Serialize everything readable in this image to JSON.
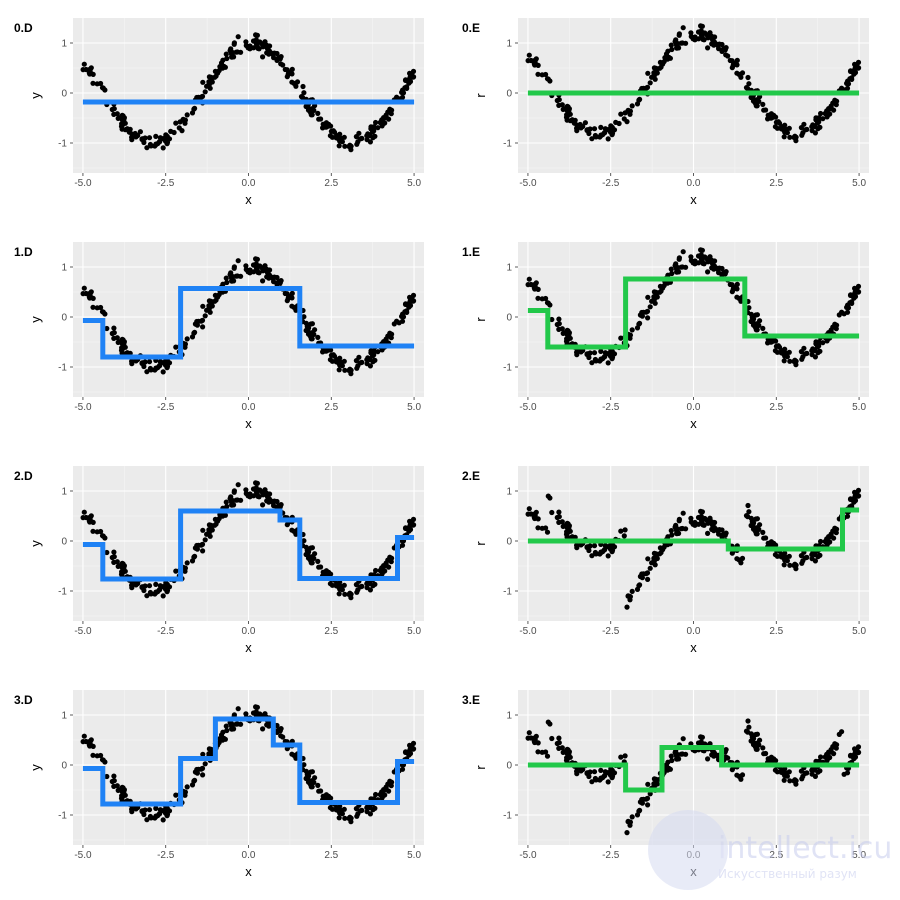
{
  "chart_data": [
    {
      "id": "0.D",
      "type": "scatter",
      "title": "0.D",
      "xlabel": "x",
      "ylabel": "y",
      "color": "#1f82f5",
      "fit": [
        [
          -5,
          -0.18
        ],
        [
          5,
          -0.18
        ]
      ],
      "ylim": [
        -1.6,
        1.5
      ],
      "xlim": [
        -5.3,
        5.3
      ],
      "xticks": [
        "-5.0",
        "-2.5",
        "0.0",
        "2.5",
        "5.0"
      ],
      "yticks": [
        "-1",
        "0",
        "1"
      ]
    },
    {
      "id": "0.E",
      "type": "scatter",
      "title": "0.E",
      "xlabel": "x",
      "ylabel": "r",
      "color": "#22c84a",
      "fit": [
        [
          -5,
          0.0
        ],
        [
          5,
          0.0
        ]
      ],
      "ylim": [
        -1.6,
        1.5
      ],
      "xlim": [
        -5.3,
        5.3
      ],
      "xticks": [
        "-5.0",
        "-2.5",
        "0.0",
        "2.5",
        "5.0"
      ],
      "yticks": [
        "-1",
        "0",
        "1"
      ]
    },
    {
      "id": "1.D",
      "type": "scatter",
      "title": "1.D",
      "xlabel": "x",
      "ylabel": "y",
      "color": "#1f82f5",
      "fit": [
        [
          -5,
          -0.07
        ],
        [
          -4.4,
          -0.07
        ],
        [
          -4.4,
          -0.8
        ],
        [
          -2.05,
          -0.8
        ],
        [
          -2.05,
          0.57
        ],
        [
          1.55,
          0.57
        ],
        [
          1.55,
          -0.58
        ],
        [
          5,
          -0.58
        ]
      ],
      "ylim": [
        -1.6,
        1.5
      ],
      "xlim": [
        -5.3,
        5.3
      ],
      "xticks": [
        "-5.0",
        "-2.5",
        "0.0",
        "2.5",
        "5.0"
      ],
      "yticks": [
        "-1",
        "0",
        "1"
      ]
    },
    {
      "id": "1.E",
      "type": "scatter",
      "title": "1.E",
      "xlabel": "x",
      "ylabel": "r",
      "color": "#22c84a",
      "fit": [
        [
          -5,
          0.13
        ],
        [
          -4.4,
          0.13
        ],
        [
          -4.4,
          -0.6
        ],
        [
          -2.05,
          -0.6
        ],
        [
          -2.05,
          0.76
        ],
        [
          1.55,
          0.76
        ],
        [
          1.55,
          -0.38
        ],
        [
          5,
          -0.38
        ]
      ],
      "ylim": [
        -1.6,
        1.5
      ],
      "xlim": [
        -5.3,
        5.3
      ],
      "xticks": [
        "-5.0",
        "-2.5",
        "0.0",
        "2.5",
        "5.0"
      ],
      "yticks": [
        "-1",
        "0",
        "1"
      ]
    },
    {
      "id": "2.D",
      "type": "scatter",
      "title": "2.D",
      "xlabel": "x",
      "ylabel": "y",
      "color": "#1f82f5",
      "fit": [
        [
          -5,
          -0.07
        ],
        [
          -4.4,
          -0.07
        ],
        [
          -4.4,
          -0.76
        ],
        [
          -2.05,
          -0.76
        ],
        [
          -2.05,
          0.6
        ],
        [
          0.95,
          0.6
        ],
        [
          0.95,
          0.42
        ],
        [
          1.55,
          0.42
        ],
        [
          1.55,
          -0.75
        ],
        [
          4.5,
          -0.75
        ],
        [
          4.5,
          0.07
        ],
        [
          5,
          0.07
        ]
      ],
      "ylim": [
        -1.6,
        1.5
      ],
      "xlim": [
        -5.3,
        5.3
      ],
      "xticks": [
        "-5.0",
        "-2.5",
        "0.0",
        "2.5",
        "5.0"
      ],
      "yticks": [
        "-1",
        "0",
        "1"
      ]
    },
    {
      "id": "2.E",
      "type": "scatter",
      "title": "2.E",
      "xlabel": "x",
      "ylabel": "r",
      "color": "#22c84a",
      "fit": [
        [
          -5,
          0.0
        ],
        [
          1.05,
          0.0
        ],
        [
          1.05,
          -0.16
        ],
        [
          4.5,
          -0.16
        ],
        [
          4.5,
          0.62
        ],
        [
          5,
          0.62
        ]
      ],
      "ylim": [
        -1.6,
        1.5
      ],
      "xlim": [
        -5.3,
        5.3
      ],
      "xticks": [
        "-5.0",
        "-2.5",
        "0.0",
        "2.5",
        "5.0"
      ],
      "yticks": [
        "-1",
        "0",
        "1"
      ]
    },
    {
      "id": "3.D",
      "type": "scatter",
      "title": "3.D",
      "xlabel": "x",
      "ylabel": "y",
      "color": "#1f82f5",
      "fit": [
        [
          -5,
          -0.07
        ],
        [
          -4.4,
          -0.07
        ],
        [
          -4.4,
          -0.78
        ],
        [
          -2.05,
          -0.78
        ],
        [
          -2.05,
          0.13
        ],
        [
          -1.0,
          0.13
        ],
        [
          -1.0,
          0.92
        ],
        [
          0.75,
          0.92
        ],
        [
          0.75,
          0.4
        ],
        [
          1.55,
          0.4
        ],
        [
          1.55,
          -0.75
        ],
        [
          4.5,
          -0.75
        ],
        [
          4.5,
          0.07
        ],
        [
          5,
          0.07
        ]
      ],
      "ylim": [
        -1.6,
        1.5
      ],
      "xlim": [
        -5.3,
        5.3
      ],
      "xticks": [
        "-5.0",
        "-2.5",
        "0.0",
        "2.5",
        "5.0"
      ],
      "yticks": [
        "-1",
        "0",
        "1"
      ]
    },
    {
      "id": "3.E",
      "type": "scatter",
      "title": "3.E",
      "xlabel": "x",
      "ylabel": "r",
      "color": "#22c84a",
      "fit": [
        [
          -5,
          0.0
        ],
        [
          -2.05,
          0.0
        ],
        [
          -2.05,
          -0.5
        ],
        [
          -0.95,
          -0.5
        ],
        [
          -0.95,
          0.35
        ],
        [
          0.85,
          0.35
        ],
        [
          0.85,
          0.0
        ],
        [
          5,
          0.0
        ]
      ],
      "ylim": [
        -1.6,
        1.5
      ],
      "xlim": [
        -5.3,
        5.3
      ],
      "xticks": [
        "-5.0",
        "-2.5",
        "0.0",
        "2.5",
        "5.0"
      ],
      "yticks": [
        "-1",
        "0",
        "1"
      ]
    }
  ],
  "watermark": {
    "line1": "intellect.icu",
    "line2": "Искусственный разум"
  }
}
